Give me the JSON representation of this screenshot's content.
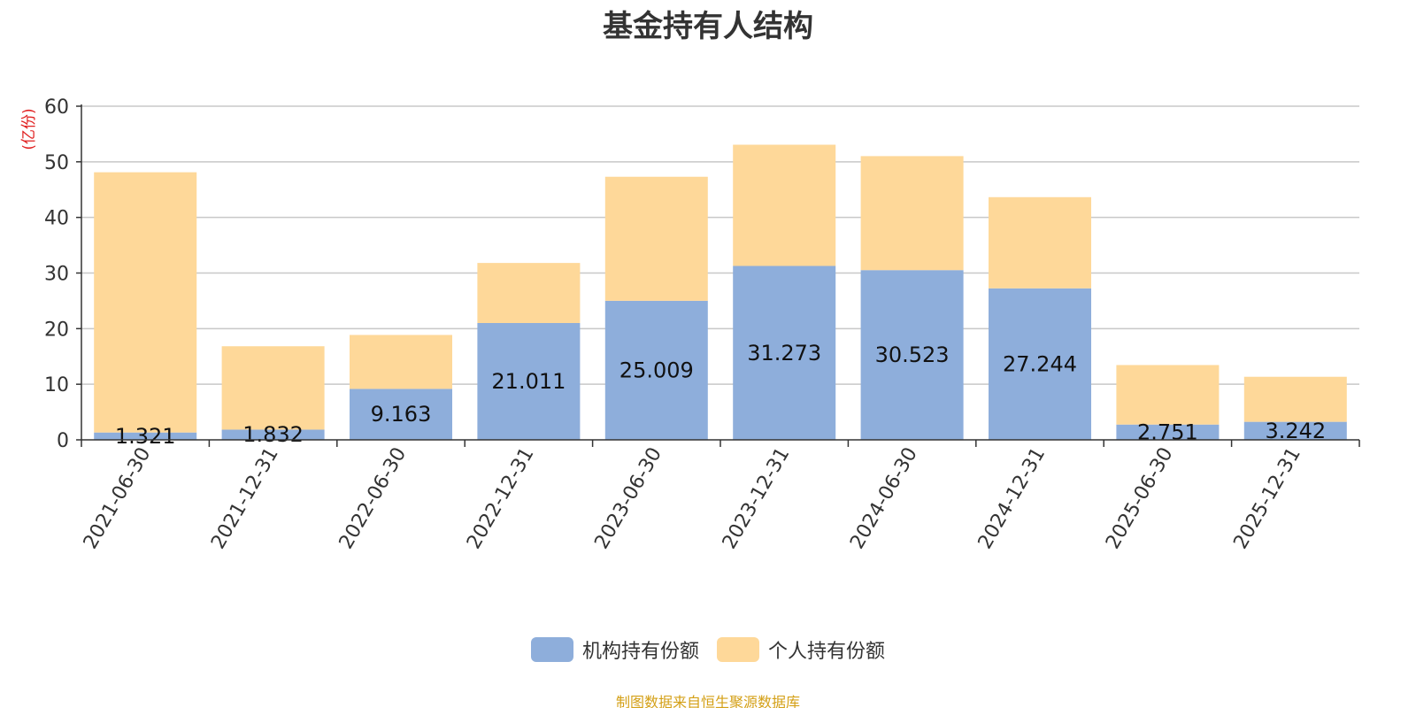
{
  "title": "基金持有人结构",
  "y_unit_label": "(亿份)",
  "source_note": "制图数据来自恒生聚源数据库",
  "colors": {
    "institutional": "#8eaedb",
    "individual": "#fed899",
    "unit_label": "#e02020",
    "source_note": "#d4a017",
    "grid": "#c8c8c8",
    "axis": "#333333"
  },
  "legend": [
    {
      "label": "机构持有份额",
      "color": "#8eaedb"
    },
    {
      "label": "个人持有份额",
      "color": "#fed899"
    }
  ],
  "chart_data": {
    "type": "bar",
    "stacked": true,
    "title": "基金持有人结构",
    "xlabel": "",
    "ylabel": "(亿份)",
    "ylim": [
      0,
      60
    ],
    "yticks": [
      0,
      10,
      20,
      30,
      40,
      50,
      60
    ],
    "grid": true,
    "legend_position": "bottom",
    "categories": [
      "2021-06-30",
      "2021-12-31",
      "2022-06-30",
      "2022-12-31",
      "2023-06-30",
      "2023-12-31",
      "2024-06-30",
      "2024-12-31",
      "2025-06-30",
      "2025-12-31"
    ],
    "series": [
      {
        "name": "机构持有份额",
        "values": [
          1.321,
          1.832,
          9.163,
          21.011,
          25.009,
          31.273,
          30.523,
          27.244,
          2.751,
          3.242
        ],
        "labels": [
          "1.321",
          "1.832",
          "9.163",
          "21.011",
          "25.009",
          "31.273",
          "30.523",
          "27.244",
          "2.751",
          "3.242"
        ]
      },
      {
        "name": "个人持有份额",
        "values": [
          46.8,
          15.0,
          9.7,
          10.8,
          22.3,
          21.8,
          20.5,
          16.4,
          10.7,
          8.1
        ]
      }
    ]
  }
}
